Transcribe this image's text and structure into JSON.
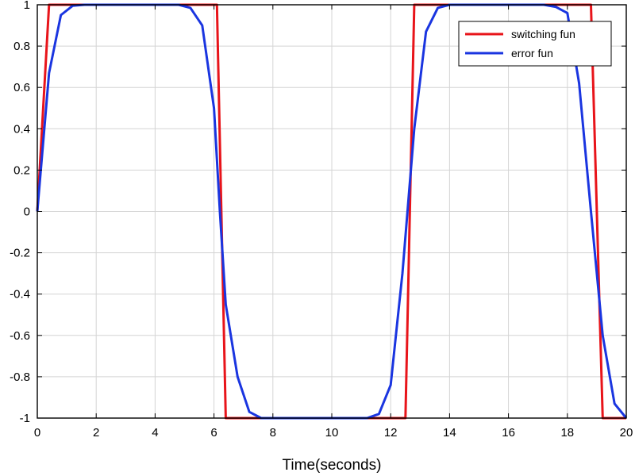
{
  "chart_data": {
    "type": "line",
    "title": "",
    "xlabel": "Time(seconds)",
    "ylabel": "",
    "xlim": [
      0,
      20
    ],
    "ylim": [
      -1,
      1
    ],
    "xticks": [
      0,
      2,
      4,
      6,
      8,
      10,
      12,
      14,
      16,
      18,
      20
    ],
    "yticks": [
      -1,
      -0.8,
      -0.6,
      -0.4,
      -0.2,
      0,
      0.2,
      0.4,
      0.6,
      0.8,
      1
    ],
    "xtick_labels": [
      "0",
      "2",
      "4",
      "6",
      "8",
      "10",
      "12",
      "14",
      "16",
      "18",
      "20"
    ],
    "ytick_labels": [
      "-1",
      "-0.8",
      "-0.6",
      "-0.4",
      "-0.2",
      "0",
      "0.2",
      "0.4",
      "0.6",
      "0.8",
      "1"
    ],
    "grid": true,
    "legend_position": "top-right",
    "series": [
      {
        "name": "switching fun",
        "color": "#e8141a",
        "x": [
          0,
          0.4,
          6.1,
          6.4,
          12.5,
          12.8,
          18.8,
          19.2,
          20
        ],
        "y": [
          0,
          1,
          1,
          -1,
          -1,
          1,
          1,
          -1,
          -1
        ]
      },
      {
        "name": "error fun",
        "color": "#1a35e0",
        "x": [
          0,
          0.4,
          0.8,
          1.2,
          1.6,
          2,
          3,
          4,
          4.8,
          5.2,
          5.6,
          6,
          6.2,
          6.4,
          6.8,
          7.2,
          7.6,
          8,
          9,
          10,
          10.8,
          11.2,
          11.6,
          12,
          12.4,
          12.8,
          13.2,
          13.6,
          14,
          15,
          16,
          17.2,
          17.6,
          18,
          18.4,
          18.8,
          19.2,
          19.6,
          20
        ],
        "y": [
          0,
          0.67,
          0.95,
          0.995,
          1,
          1,
          1,
          1,
          1,
          0.985,
          0.9,
          0.5,
          0,
          -0.45,
          -0.8,
          -0.97,
          -1,
          -1,
          -1,
          -1,
          -1,
          -1,
          -0.98,
          -0.84,
          -0.3,
          0.4,
          0.87,
          0.985,
          1,
          1,
          1,
          1,
          0.99,
          0.96,
          0.62,
          0,
          -0.6,
          -0.93,
          -1
        ]
      }
    ]
  }
}
